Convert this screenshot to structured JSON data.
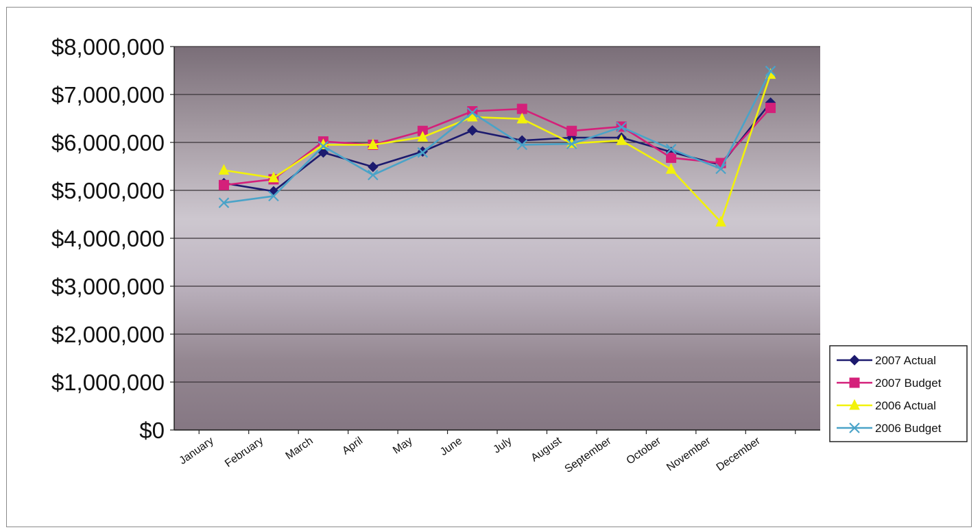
{
  "chart_data": {
    "type": "line",
    "title": "",
    "xlabel": "",
    "ylabel": "",
    "ylim": [
      0,
      8000000
    ],
    "y_ticks": [
      0,
      1000000,
      2000000,
      3000000,
      4000000,
      5000000,
      6000000,
      7000000,
      8000000
    ],
    "y_tick_labels": [
      "$0",
      "$1,000,000",
      "$2,000,000",
      "$3,000,000",
      "$4,000,000",
      "$5,000,000",
      "$6,000,000",
      "$7,000,000",
      "$8,000,000"
    ],
    "categories": [
      "January",
      "February",
      "March",
      "April",
      "May",
      "June",
      "July",
      "August",
      "September",
      "October",
      "November",
      "December"
    ],
    "grid": true,
    "legend_position": "right",
    "series": [
      {
        "name": "2007 Actual",
        "color": "#1c1a6e",
        "marker": "diamond",
        "values": [
          5150000,
          4980000,
          5790000,
          5490000,
          5810000,
          6250000,
          6040000,
          6100000,
          6100000,
          5800000,
          5530000,
          6830000
        ]
      },
      {
        "name": "2007 Budget",
        "color": "#d4207a",
        "marker": "square",
        "values": [
          5110000,
          5230000,
          6020000,
          5950000,
          6240000,
          6650000,
          6700000,
          6240000,
          6330000,
          5680000,
          5570000,
          6720000
        ]
      },
      {
        "name": "2006 Actual",
        "color": "#f2f20a",
        "marker": "triangle",
        "values": [
          5420000,
          5260000,
          5950000,
          5950000,
          6110000,
          6530000,
          6490000,
          5980000,
          6040000,
          5440000,
          4340000,
          7420000
        ]
      },
      {
        "name": "2006 Budget",
        "color": "#4aa3c8",
        "marker": "x",
        "values": [
          4740000,
          4880000,
          5920000,
          5320000,
          5790000,
          6620000,
          5950000,
          5970000,
          6320000,
          5860000,
          5450000,
          7490000
        ]
      }
    ]
  }
}
